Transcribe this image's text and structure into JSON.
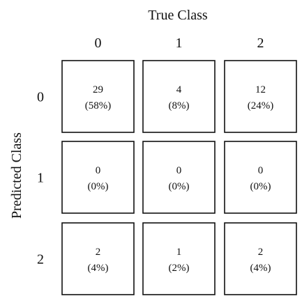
{
  "chart_data": {
    "type": "heatmap",
    "xlabel": "True Class",
    "ylabel": "Predicted Class",
    "x_categories": [
      "0",
      "1",
      "2"
    ],
    "y_categories": [
      "0",
      "1",
      "2"
    ],
    "counts": [
      [
        29,
        4,
        12
      ],
      [
        0,
        0,
        0
      ],
      [
        2,
        1,
        2
      ]
    ],
    "percent_labels": [
      [
        "(58%)",
        "(8%)",
        "(24%)"
      ],
      [
        "(0%)",
        "(0%)",
        "(0%)"
      ],
      [
        "(4%)",
        "(2%)",
        "(4%)"
      ]
    ],
    "cell_fill": "#ffffff",
    "cell_border": "#111111"
  }
}
